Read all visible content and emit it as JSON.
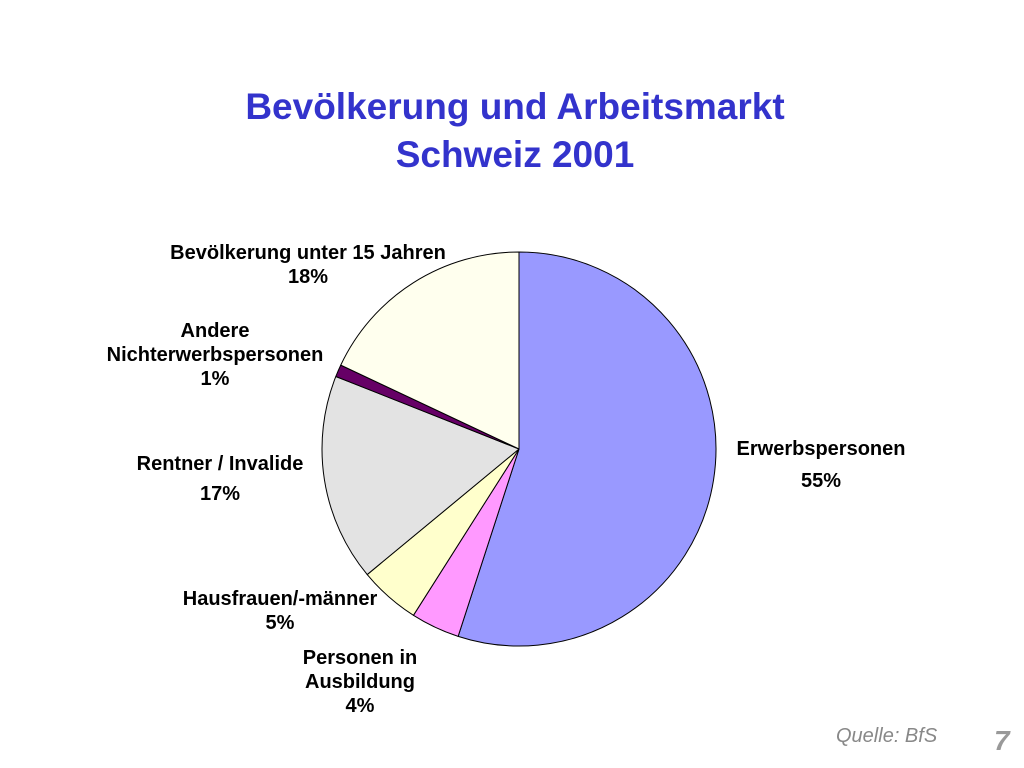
{
  "slide": {
    "title_line1": "Bevölkerung und Arbeitsmarkt",
    "title_line2": "Schweiz 2001",
    "source": "Quelle: BfS",
    "page_number": "7"
  },
  "chart_data": {
    "type": "pie",
    "title": "Bevölkerung und Arbeitsmarkt Schweiz 2001",
    "start_angle_deg": 0,
    "direction": "clockwise",
    "slices": [
      {
        "label": "Erwerbspersonen",
        "value": 55,
        "pct": "55%",
        "color": "#9999ff"
      },
      {
        "label": "Personen in Ausbildung",
        "label_lines": [
          "Personen in",
          "Ausbildung"
        ],
        "value": 4,
        "pct": "4%",
        "color": "#ff99ff"
      },
      {
        "label": "Hausfrauen/-männer",
        "value": 5,
        "pct": "5%",
        "color": "#ffffcc"
      },
      {
        "label": "Rentner / Invalide",
        "value": 17,
        "pct": "17%",
        "color": "#e3e3e3"
      },
      {
        "label": "Andere Nichterwerbspersonen",
        "label_lines": [
          "Andere",
          "Nichterwerbspersonen"
        ],
        "value": 1,
        "pct": "1%",
        "color": "#660066"
      },
      {
        "label": "Bevölkerung unter 15 Jahren",
        "value": 18,
        "pct": "18%",
        "color": "#ffffee"
      }
    ]
  }
}
